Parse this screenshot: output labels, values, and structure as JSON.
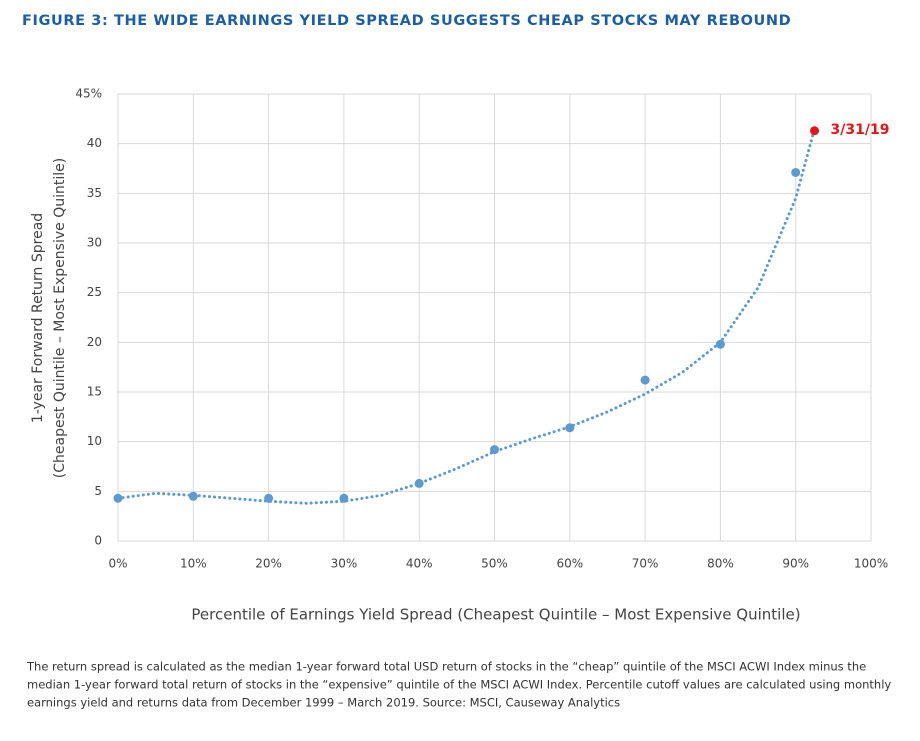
{
  "chart_data": {
    "type": "scatter",
    "title": "FIGURE 3: THE WIDE EARNINGS YIELD SPREAD SUGGESTS CHEAP STOCKS MAY REBOUND",
    "x_label": "Percentile of Earnings Yield Spread (Cheapest Quintile – Most Expensive Quintile)",
    "y_label": [
      "1-year Forward Return Spread",
      "(Cheapest Quintile – Most Expensive Quintile)"
    ],
    "xlim": [
      0,
      100
    ],
    "xticks": [
      {
        "value": 0,
        "label": "0%"
      },
      {
        "value": 10,
        "label": "10%"
      },
      {
        "value": 20,
        "label": "20%"
      },
      {
        "value": 30,
        "label": "30%"
      },
      {
        "value": 40,
        "label": "40%"
      },
      {
        "value": 50,
        "label": "50%"
      },
      {
        "value": 60,
        "label": "60%"
      },
      {
        "value": 70,
        "label": "70%"
      },
      {
        "value": 80,
        "label": "80%"
      },
      {
        "value": 90,
        "label": "90%"
      },
      {
        "value": 100,
        "label": "100%"
      }
    ],
    "ylim": [
      0,
      45
    ],
    "yticks": [
      0,
      5,
      10,
      15,
      20,
      25,
      30,
      35,
      40,
      {
        "value": 45,
        "label": "45%"
      }
    ],
    "grid": true,
    "series": [
      {
        "color": "#5b9bd5",
        "x": [
          0,
          10,
          20,
          30,
          40,
          50,
          60,
          70,
          80,
          90
        ],
        "values": [
          4.3,
          4.5,
          4.3,
          4.3,
          5.8,
          9.2,
          11.4,
          16.2,
          19.8,
          37.1
        ]
      },
      {
        "color": "#e8141b",
        "x": [
          92.5
        ],
        "values": [
          41.3
        ]
      }
    ],
    "trendline": {
      "color": "#5b9bd5",
      "x": [
        0,
        5,
        10,
        15,
        20,
        25,
        30,
        35,
        40,
        45,
        50,
        55,
        60,
        65,
        70,
        75,
        80,
        85,
        90,
        92.5
      ],
      "values": [
        4.3,
        4.8,
        4.6,
        4.3,
        4.0,
        3.8,
        4.0,
        4.6,
        5.8,
        7.3,
        9.0,
        10.3,
        11.5,
        13.0,
        14.8,
        17.0,
        20.0,
        25.5,
        34.5,
        41.5
      ]
    },
    "annotation": {
      "text": "3/31/19",
      "color": "#e8141b"
    },
    "footnote": [
      "The return spread is calculated as the median 1-year forward total USD return of stocks in the “cheap” quintile of the MSCI ACWI Index minus the",
      "median 1-year forward total return of stocks in the “expensive” quintile of the MSCI ACWI Index. Percentile cutoff values are calculated using monthly",
      "earnings yield and returns data from December 1999 – March 2019. Source: MSCI, Causeway Analytics"
    ]
  }
}
